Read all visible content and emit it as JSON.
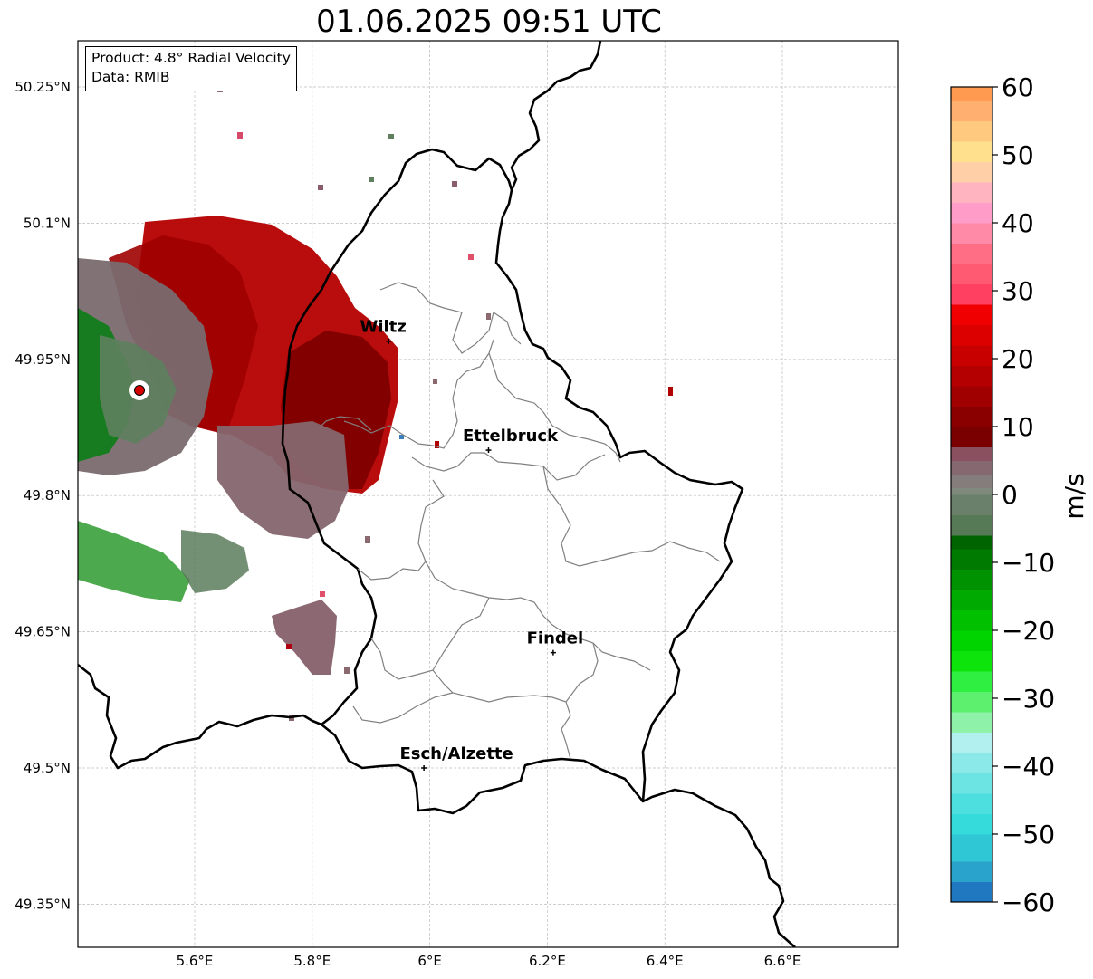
{
  "title": "01.06.2025 09:51 UTC",
  "info": {
    "product": "Product: 4.8° Radial Velocity",
    "data": "Data: RMIB"
  },
  "map": {
    "lon_range": [
      5.4,
      6.8
    ],
    "lat_range": [
      49.3,
      50.3
    ],
    "lon_ticks": [
      {
        "value": 5.6,
        "label": "5.6°E"
      },
      {
        "value": 5.8,
        "label": "5.8°E"
      },
      {
        "value": 6.0,
        "label": "6°E"
      },
      {
        "value": 6.2,
        "label": "6.2°E"
      },
      {
        "value": 6.4,
        "label": "6.4°E"
      },
      {
        "value": 6.6,
        "label": "6.6°E"
      }
    ],
    "lat_ticks": [
      {
        "value": 50.25,
        "label": "50.25°N"
      },
      {
        "value": 50.1,
        "label": "50.1°N"
      },
      {
        "value": 49.95,
        "label": "49.95°N"
      },
      {
        "value": 49.8,
        "label": "49.8°N"
      },
      {
        "value": 49.65,
        "label": "49.65°N"
      },
      {
        "value": 49.5,
        "label": "49.5°N"
      },
      {
        "value": 49.35,
        "label": "49.35°N"
      }
    ],
    "grid": true,
    "radar_site": {
      "lon": 5.505,
      "lat": 49.915
    },
    "cities": [
      {
        "name": "Wiltz",
        "lon": 5.93,
        "lat": 49.97
      },
      {
        "name": "Ettelbruck",
        "lon": 6.1,
        "lat": 49.85
      },
      {
        "name": "Findel",
        "lon": 6.21,
        "lat": 49.627
      },
      {
        "name": "Esch/Alzette",
        "lon": 5.99,
        "lat": 49.5
      }
    ]
  },
  "colorbar": {
    "label": "m/s",
    "range": [
      -60,
      60
    ],
    "ticks": [
      {
        "value": 60,
        "label": "60"
      },
      {
        "value": 50,
        "label": "50"
      },
      {
        "value": 40,
        "label": "40"
      },
      {
        "value": 30,
        "label": "30"
      },
      {
        "value": 20,
        "label": "20"
      },
      {
        "value": 10,
        "label": "10"
      },
      {
        "value": 0,
        "label": "0"
      },
      {
        "value": -10,
        "label": "−10"
      },
      {
        "value": -20,
        "label": "−20"
      },
      {
        "value": -30,
        "label": "−30"
      },
      {
        "value": -40,
        "label": "−40"
      },
      {
        "value": -50,
        "label": "−50"
      },
      {
        "value": -60,
        "label": "−60"
      }
    ]
  }
}
